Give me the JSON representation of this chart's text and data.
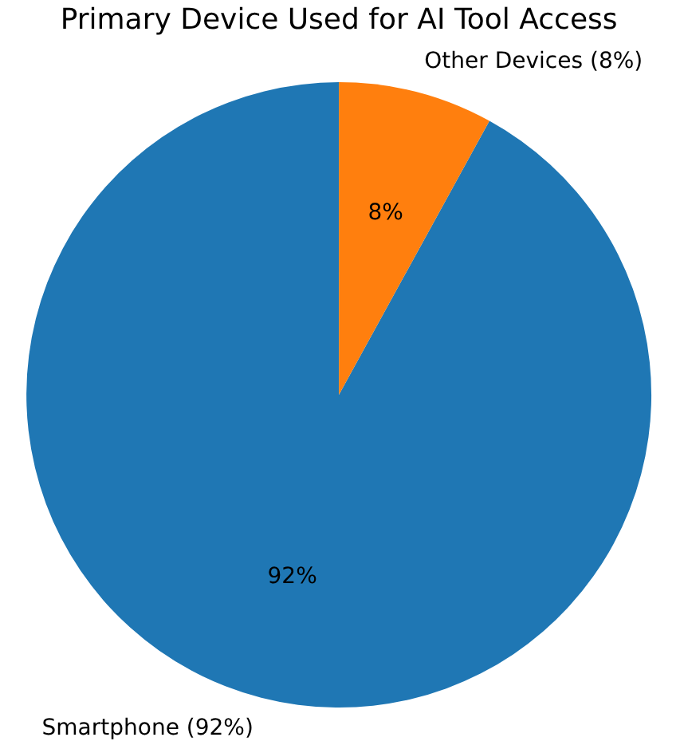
{
  "chart_data": {
    "type": "pie",
    "title": "Primary Device Used for AI Tool Access",
    "categories": [
      "Smartphone (92%)",
      "Other Devices (8%)"
    ],
    "values": [
      92,
      8
    ],
    "colors": [
      "#1f77b4",
      "#ff7f0e"
    ],
    "value_labels": [
      "92%",
      "8%"
    ]
  }
}
